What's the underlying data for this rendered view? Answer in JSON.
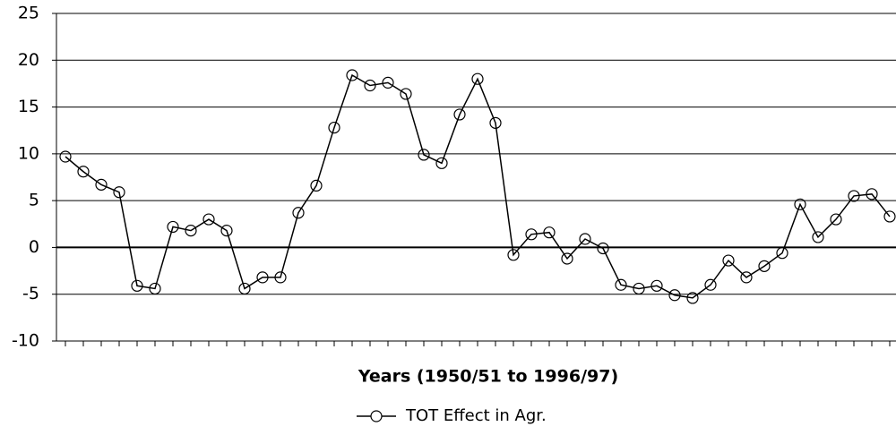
{
  "chart_data": {
    "type": "line",
    "x_label": "Years (1950/51 to 1996/97)",
    "categories": [
      null,
      null,
      null,
      null,
      null,
      null,
      null,
      null,
      null,
      null,
      null,
      null,
      null,
      null,
      null,
      null,
      null,
      null,
      null,
      null,
      null,
      null,
      null,
      null,
      null,
      null,
      null,
      null,
      null,
      null,
      null,
      null,
      null,
      null,
      null,
      null,
      null,
      null,
      null,
      null,
      null,
      null,
      null,
      null,
      null,
      null,
      null
    ],
    "series": [
      {
        "name": "TOT Effect in Agr.",
        "color": "#000000",
        "values": [
          9.7,
          8.1,
          6.7,
          5.9,
          -4.1,
          -4.4,
          2.2,
          1.8,
          3.0,
          1.8,
          -4.4,
          -3.2,
          -3.2,
          3.7,
          6.6,
          12.8,
          18.4,
          17.3,
          17.6,
          16.4,
          9.9,
          9.0,
          14.2,
          18.0,
          13.3,
          -0.8,
          1.4,
          1.6,
          -1.2,
          0.9,
          -0.1,
          -4.0,
          -4.4,
          -4.1,
          -5.1,
          -5.4,
          -4.0,
          -1.4,
          -3.2,
          -2.0,
          -0.6,
          4.6,
          1.1,
          3.0,
          5.5,
          5.7,
          3.3
        ]
      }
    ],
    "ylim": [
      -10,
      25
    ],
    "yticks": [
      -10,
      -5,
      0,
      5,
      10,
      15,
      20,
      25
    ],
    "grid": true,
    "legend": "bottom"
  }
}
